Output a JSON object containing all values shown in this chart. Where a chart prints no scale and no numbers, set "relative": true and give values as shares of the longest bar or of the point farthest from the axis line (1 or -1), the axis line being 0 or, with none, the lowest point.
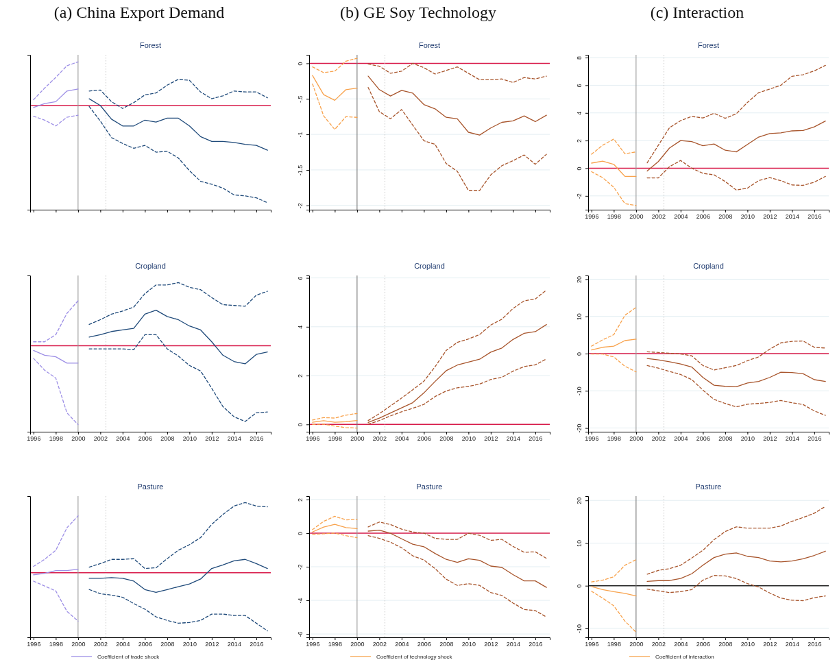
{
  "chart_data": [
    {
      "type": "line",
      "title": "(a) China Export Demand",
      "subtitle": "Forest",
      "relative": true,
      "xlim": [
        1995.7,
        2017.3
      ],
      "xticks": [
        1996,
        1998,
        2000,
        2002,
        2004,
        2006,
        2008,
        2010,
        2012,
        2014,
        2016
      ],
      "tick_labels": false,
      "ref_lines": [
        {
          "axis": "y",
          "value": 0,
          "color": "#d81b4a"
        },
        {
          "axis": "x",
          "value": 2000,
          "color": "#999999"
        },
        {
          "axis": "x",
          "value": 2002.5,
          "color": "#cccccc",
          "line_style": "dotted"
        }
      ],
      "series": [
        {
          "color": "#9d8fe6",
          "x": [
            1996,
            1997,
            1998,
            1999,
            2000
          ],
          "values": [
            -0.02,
            0.02,
            0.04,
            0.15,
            0.17
          ]
        },
        {
          "color": "#9d8fe6",
          "line_style": "dashed",
          "x": [
            1996,
            1997,
            1998,
            1999,
            2000
          ],
          "values": [
            0.06,
            0.18,
            0.29,
            0.41,
            0.45
          ]
        },
        {
          "color": "#9d8fe6",
          "line_style": "dashed",
          "x": [
            1996,
            1997,
            1998,
            1999,
            2000
          ],
          "values": [
            -0.11,
            -0.15,
            -0.21,
            -0.12,
            -0.1
          ]
        },
        {
          "color": "#1f4a7a",
          "x": [
            2001,
            2002,
            2003,
            2004,
            2005,
            2006,
            2007,
            2008,
            2009,
            2010,
            2011,
            2012,
            2013,
            2014,
            2015,
            2016,
            2017
          ],
          "values": [
            0.07,
            0,
            -0.14,
            -0.21,
            -0.21,
            -0.15,
            -0.17,
            -0.13,
            -0.13,
            -0.21,
            -0.32,
            -0.37,
            -0.37,
            -0.38,
            -0.4,
            -0.41,
            -0.46
          ]
        },
        {
          "color": "#1f4a7a",
          "line_style": "dashed",
          "x": [
            2001,
            2002,
            2003,
            2004,
            2005,
            2006,
            2007,
            2008,
            2009,
            2010,
            2011,
            2012,
            2013,
            2014,
            2015,
            2016,
            2017
          ],
          "values": [
            0.15,
            0.16,
            0.04,
            -0.03,
            0.03,
            0.11,
            0.13,
            0.21,
            0.27,
            0.26,
            0.14,
            0.07,
            0.1,
            0.15,
            0.14,
            0.14,
            0.08
          ]
        },
        {
          "color": "#1f4a7a",
          "line_style": "dashed",
          "x": [
            2001,
            2002,
            2003,
            2004,
            2005,
            2006,
            2007,
            2008,
            2009,
            2010,
            2011,
            2012,
            2013,
            2014,
            2015,
            2016,
            2017
          ],
          "values": [
            -0.01,
            -0.16,
            -0.33,
            -0.39,
            -0.44,
            -0.41,
            -0.48,
            -0.47,
            -0.54,
            -0.67,
            -0.78,
            -0.81,
            -0.85,
            -0.92,
            -0.93,
            -0.95,
            -1
          ]
        }
      ]
    },
    {
      "type": "line",
      "title": "(b) GE Soy Technology",
      "subtitle": "Forest",
      "xlim": [
        1995.7,
        2017.3
      ],
      "xticks": [
        1996,
        1998,
        2000,
        2002,
        2004,
        2006,
        2008,
        2010,
        2012,
        2014,
        2016
      ],
      "ylim": [
        -2.06,
        0.12
      ],
      "yticks": [
        {
          "value": 0,
          "label": "0"
        },
        {
          "value": -0.5,
          "label": "-.5"
        },
        {
          "value": -1,
          "label": "-1"
        },
        {
          "value": -1.5,
          "label": "-1.5"
        },
        {
          "value": -2,
          "label": "-2"
        }
      ],
      "tick_labels": "y",
      "grid": "y",
      "ref_lines": [
        {
          "axis": "y",
          "value": 0,
          "color": "#d81b4a"
        },
        {
          "axis": "x",
          "value": 2000,
          "color": "#777777"
        },
        {
          "axis": "x",
          "value": 2002.5,
          "color": "#cccccc",
          "line_style": "dotted"
        }
      ],
      "series": [
        {
          "color": "#f8a24c",
          "x": [
            1996,
            1997,
            1998,
            1999,
            2000
          ],
          "values": [
            -0.17,
            -0.44,
            -0.52,
            -0.37,
            -0.35
          ]
        },
        {
          "color": "#f8a24c",
          "line_style": "dashed",
          "x": [
            1996,
            1997,
            1998,
            1999,
            2000
          ],
          "values": [
            -0.05,
            -0.13,
            -0.11,
            0.03,
            0.07
          ]
        },
        {
          "color": "#f8a24c",
          "line_style": "dashed",
          "x": [
            1996,
            1997,
            1998,
            1999,
            2000
          ],
          "values": [
            -0.29,
            -0.74,
            -0.93,
            -0.75,
            -0.76
          ]
        },
        {
          "color": "#a8552c",
          "x": [
            2001,
            2002,
            2003,
            2004,
            2005,
            2006,
            2007,
            2008,
            2009,
            2010,
            2011,
            2012,
            2013,
            2014,
            2015,
            2016,
            2017
          ],
          "values": [
            -0.18,
            -0.37,
            -0.46,
            -0.38,
            -0.42,
            -0.58,
            -0.64,
            -0.76,
            -0.78,
            -0.97,
            -1.01,
            -0.91,
            -0.83,
            -0.81,
            -0.74,
            -0.82,
            -0.73
          ]
        },
        {
          "color": "#a8552c",
          "line_style": "dashed",
          "x": [
            2001,
            2002,
            2003,
            2004,
            2005,
            2006,
            2007,
            2008,
            2009,
            2010,
            2011,
            2012,
            2013,
            2014,
            2015,
            2016,
            2017
          ],
          "values": [
            -0.01,
            -0.04,
            -0.14,
            -0.11,
            0,
            -0.06,
            -0.15,
            -0.1,
            -0.05,
            -0.14,
            -0.23,
            -0.23,
            -0.22,
            -0.27,
            -0.2,
            -0.22,
            -0.18
          ]
        },
        {
          "color": "#a8552c",
          "line_style": "dashed",
          "x": [
            2001,
            2002,
            2003,
            2004,
            2005,
            2006,
            2007,
            2008,
            2009,
            2010,
            2011,
            2012,
            2013,
            2014,
            2015,
            2016,
            2017
          ],
          "values": [
            -0.34,
            -0.68,
            -0.78,
            -0.65,
            -0.87,
            -1.09,
            -1.14,
            -1.41,
            -1.52,
            -1.79,
            -1.79,
            -1.57,
            -1.44,
            -1.37,
            -1.29,
            -1.42,
            -1.28
          ]
        }
      ]
    },
    {
      "type": "line",
      "title": "(c) Interaction",
      "subtitle": "Forest",
      "xlim": [
        1995.7,
        2017.3
      ],
      "xticks": [
        1996,
        1998,
        2000,
        2002,
        2004,
        2006,
        2008,
        2010,
        2012,
        2014,
        2016
      ],
      "ylim": [
        -3,
        8.2
      ],
      "yticks": [
        -2,
        0,
        2,
        4,
        6,
        8
      ],
      "grid": "y",
      "ref_lines": [
        {
          "axis": "y",
          "value": 0,
          "color": "#d81b4a"
        },
        {
          "axis": "x",
          "value": 2000,
          "color": "#999999"
        },
        {
          "axis": "x",
          "value": 2002.5,
          "color": "#cccccc",
          "line_style": "dotted"
        }
      ],
      "series": [
        {
          "color": "#f8a24c",
          "x": [
            1996,
            1997,
            1998,
            1999,
            2000
          ],
          "values": [
            0.37,
            0.51,
            0.28,
            -0.59,
            -0.59
          ]
        },
        {
          "color": "#f8a24c",
          "line_style": "dashed",
          "x": [
            1996,
            1997,
            1998,
            1999,
            2000
          ],
          "values": [
            1.01,
            1.66,
            2.11,
            1.04,
            1.18
          ]
        },
        {
          "color": "#f8a24c",
          "line_style": "dashed",
          "x": [
            1996,
            1997,
            1998,
            1999,
            2000
          ],
          "values": [
            -0.25,
            -0.68,
            -1.38,
            -2.56,
            -2.7
          ]
        },
        {
          "color": "#a8552c",
          "x": [
            2001,
            2002,
            2003,
            2004,
            2005,
            2006,
            2007,
            2008,
            2009,
            2010,
            2011,
            2012,
            2013,
            2014,
            2015,
            2016,
            2017
          ],
          "values": [
            -0.2,
            0.48,
            1.46,
            2.0,
            1.92,
            1.63,
            1.75,
            1.3,
            1.18,
            1.72,
            2.25,
            2.51,
            2.56,
            2.7,
            2.73,
            2.99,
            3.41
          ]
        },
        {
          "color": "#a8552c",
          "line_style": "dashed",
          "x": [
            2001,
            2002,
            2003,
            2004,
            2005,
            2006,
            2007,
            2008,
            2009,
            2010,
            2011,
            2012,
            2013,
            2014,
            2015,
            2016,
            2017
          ],
          "values": [
            0.39,
            1.66,
            2.93,
            3.44,
            3.75,
            3.63,
            3.97,
            3.61,
            3.94,
            4.76,
            5.46,
            5.72,
            6.0,
            6.65,
            6.76,
            7.04,
            7.44
          ]
        },
        {
          "color": "#a8552c",
          "line_style": "dashed",
          "x": [
            2001,
            2002,
            2003,
            2004,
            2005,
            2006,
            2007,
            2008,
            2009,
            2010,
            2011,
            2012,
            2013,
            2014,
            2015,
            2016,
            2017
          ],
          "values": [
            -0.7,
            -0.7,
            0.11,
            0.56,
            0,
            -0.37,
            -0.48,
            -0.96,
            -1.58,
            -1.44,
            -0.9,
            -0.68,
            -0.9,
            -1.21,
            -1.24,
            -1.01,
            -0.59
          ]
        }
      ]
    },
    {
      "type": "line",
      "title": "Cropland",
      "relative": true,
      "xlim": [
        1995.7,
        2017.3
      ],
      "xticks": [
        1996,
        1998,
        2000,
        2002,
        2004,
        2006,
        2008,
        2010,
        2012,
        2014,
        2016
      ],
      "tick_labels": "x",
      "ref_lines": [
        {
          "axis": "y",
          "value": 0,
          "color": "#d81b4a"
        },
        {
          "axis": "x",
          "value": 2000,
          "color": "#999999"
        },
        {
          "axis": "x",
          "value": 2002.5,
          "color": "#cccccc",
          "line_style": "dotted"
        }
      ],
      "series": [
        {
          "color": "#9d8fe6",
          "x": [
            1996,
            1997,
            1998,
            1999,
            2000
          ],
          "values": [
            -0.06,
            -0.12,
            -0.14,
            -0.22,
            -0.22
          ]
        },
        {
          "color": "#9d8fe6",
          "line_style": "dashed",
          "x": [
            1996,
            1997,
            1998,
            1999,
            2000
          ],
          "values": [
            0.05,
            0.05,
            0.14,
            0.41,
            0.57
          ]
        },
        {
          "color": "#9d8fe6",
          "line_style": "dashed",
          "x": [
            1996,
            1997,
            1998,
            1999,
            2000
          ],
          "values": [
            -0.16,
            -0.31,
            -0.41,
            -0.85,
            -1
          ]
        },
        {
          "color": "#1f4a7a",
          "x": [
            2001,
            2002,
            2003,
            2004,
            2005,
            2006,
            2007,
            2008,
            2009,
            2010,
            2011,
            2012,
            2013,
            2014,
            2015,
            2016,
            2017
          ],
          "values": [
            0.11,
            0.14,
            0.18,
            0.2,
            0.22,
            0.4,
            0.45,
            0.37,
            0.33,
            0.25,
            0.2,
            0.05,
            -0.12,
            -0.2,
            -0.23,
            -0.11,
            -0.08
          ]
        },
        {
          "color": "#1f4a7a",
          "line_style": "dashed",
          "x": [
            2001,
            2002,
            2003,
            2004,
            2005,
            2006,
            2007,
            2008,
            2009,
            2010,
            2011,
            2012,
            2013,
            2014,
            2015,
            2016,
            2017
          ],
          "values": [
            0.27,
            0.33,
            0.4,
            0.44,
            0.49,
            0.66,
            0.77,
            0.77,
            0.8,
            0.74,
            0.71,
            0.61,
            0.52,
            0.51,
            0.5,
            0.64,
            0.69
          ]
        },
        {
          "color": "#1f4a7a",
          "line_style": "dashed",
          "x": [
            2001,
            2002,
            2003,
            2004,
            2005,
            2006,
            2007,
            2008,
            2009,
            2010,
            2011,
            2012,
            2013,
            2014,
            2015,
            2016,
            2017
          ],
          "values": [
            -0.04,
            -0.04,
            -0.04,
            -0.04,
            -0.05,
            0.14,
            0.14,
            -0.04,
            -0.13,
            -0.25,
            -0.32,
            -0.54,
            -0.77,
            -0.9,
            -0.96,
            -0.85,
            -0.84
          ]
        }
      ]
    },
    {
      "type": "line",
      "title": "Cropland",
      "xlim": [
        1995.7,
        2017.3
      ],
      "xticks": [
        1996,
        1998,
        2000,
        2002,
        2004,
        2006,
        2008,
        2010,
        2012,
        2014,
        2016
      ],
      "ylim": [
        -0.3,
        6.1
      ],
      "yticks": [
        0,
        2,
        4,
        6
      ],
      "grid": "y",
      "ref_lines": [
        {
          "axis": "y",
          "value": 0,
          "color": "#d81b4a"
        },
        {
          "axis": "x",
          "value": 2000,
          "color": "#777777"
        },
        {
          "axis": "x",
          "value": 2002.5,
          "color": "#cccccc",
          "line_style": "dotted"
        }
      ],
      "series": [
        {
          "color": "#f8a24c",
          "x": [
            1996,
            1997,
            1998,
            1999,
            2000
          ],
          "values": [
            0.09,
            0.15,
            0.09,
            0.11,
            0.16
          ]
        },
        {
          "color": "#f8a24c",
          "line_style": "dashed",
          "x": [
            1996,
            1997,
            1998,
            1999,
            2000
          ],
          "values": [
            0.18,
            0.28,
            0.26,
            0.38,
            0.45
          ]
        },
        {
          "color": "#f8a24c",
          "line_style": "dashed",
          "x": [
            1996,
            1997,
            1998,
            1999,
            2000
          ],
          "values": [
            0,
            0.01,
            -0.07,
            -0.13,
            -0.15
          ]
        },
        {
          "color": "#a8552c",
          "x": [
            2001,
            2002,
            2003,
            2004,
            2005,
            2006,
            2007,
            2008,
            2009,
            2010,
            2011,
            2012,
            2013,
            2014,
            2015,
            2016,
            2017
          ],
          "values": [
            0.08,
            0.26,
            0.47,
            0.68,
            0.89,
            1.29,
            1.76,
            2.2,
            2.43,
            2.55,
            2.67,
            2.96,
            3.13,
            3.48,
            3.73,
            3.8,
            4.09
          ]
        },
        {
          "color": "#a8552c",
          "line_style": "dashed",
          "x": [
            2001,
            2002,
            2003,
            2004,
            2005,
            2006,
            2007,
            2008,
            2009,
            2010,
            2011,
            2012,
            2013,
            2014,
            2015,
            2016,
            2017
          ],
          "values": [
            0.16,
            0.44,
            0.76,
            1.08,
            1.42,
            1.77,
            2.36,
            3.03,
            3.36,
            3.5,
            3.68,
            4.07,
            4.31,
            4.75,
            5.06,
            5.14,
            5.5
          ]
        },
        {
          "color": "#a8552c",
          "line_style": "dashed",
          "x": [
            2001,
            2002,
            2003,
            2004,
            2005,
            2006,
            2007,
            2008,
            2009,
            2010,
            2011,
            2012,
            2013,
            2014,
            2015,
            2016,
            2017
          ],
          "values": [
            0.01,
            0.16,
            0.35,
            0.52,
            0.66,
            0.82,
            1.14,
            1.37,
            1.5,
            1.56,
            1.65,
            1.84,
            1.93,
            2.18,
            2.37,
            2.44,
            2.68
          ]
        }
      ]
    },
    {
      "type": "line",
      "title": "Cropland",
      "xlim": [
        1995.7,
        2017.3
      ],
      "xticks": [
        1996,
        1998,
        2000,
        2002,
        2004,
        2006,
        2008,
        2010,
        2012,
        2014,
        2016
      ],
      "ylim": [
        -21,
        21
      ],
      "yticks": [
        -20,
        -10,
        0,
        10,
        20
      ],
      "grid": "y",
      "ref_lines": [
        {
          "axis": "y",
          "value": 0,
          "color": "#d81b4a"
        },
        {
          "axis": "x",
          "value": 2000,
          "color": "#999999"
        },
        {
          "axis": "x",
          "value": 2002.5,
          "color": "#cccccc",
          "line_style": "dotted"
        }
      ],
      "series": [
        {
          "color": "#f8a24c",
          "x": [
            1996,
            1997,
            1998,
            1999,
            2000
          ],
          "values": [
            1.0,
            1.7,
            2.0,
            3.5,
            3.9
          ]
        },
        {
          "color": "#f8a24c",
          "line_style": "dashed",
          "x": [
            1996,
            1997,
            1998,
            1999,
            2000
          ],
          "values": [
            2.0,
            3.7,
            5.1,
            10.3,
            12.4
          ]
        },
        {
          "color": "#f8a24c",
          "line_style": "dashed",
          "x": [
            1996,
            1997,
            1998,
            1999,
            2000
          ],
          "values": [
            -0.1,
            -0.1,
            -0.9,
            -3.4,
            -4.9
          ]
        },
        {
          "color": "#a8552c",
          "x": [
            2001,
            2002,
            2003,
            2004,
            2005,
            2006,
            2007,
            2008,
            2009,
            2010,
            2011,
            2012,
            2013,
            2014,
            2015,
            2016,
            2017
          ],
          "values": [
            -1.3,
            -1.7,
            -2.2,
            -2.8,
            -3.6,
            -6.4,
            -8.5,
            -8.8,
            -8.9,
            -7.9,
            -7.5,
            -6.4,
            -5.0,
            -5.1,
            -5.4,
            -7.0,
            -7.5
          ]
        },
        {
          "color": "#a8552c",
          "line_style": "dashed",
          "x": [
            2001,
            2002,
            2003,
            2004,
            2005,
            2006,
            2007,
            2008,
            2009,
            2010,
            2011,
            2012,
            2013,
            2014,
            2015,
            2016,
            2017
          ],
          "values": [
            0.5,
            0.3,
            0.1,
            -0.1,
            -0.6,
            -3.2,
            -4.4,
            -3.8,
            -3.2,
            -1.9,
            -0.9,
            1.2,
            2.9,
            3.3,
            3.4,
            1.7,
            1.5
          ]
        },
        {
          "color": "#a8552c",
          "line_style": "dashed",
          "x": [
            2001,
            2002,
            2003,
            2004,
            2005,
            2006,
            2007,
            2008,
            2009,
            2010,
            2011,
            2012,
            2013,
            2014,
            2015,
            2016,
            2017
          ],
          "values": [
            -3.2,
            -3.9,
            -4.8,
            -5.6,
            -7.0,
            -9.8,
            -12.3,
            -13.4,
            -14.3,
            -13.6,
            -13.4,
            -13.1,
            -12.6,
            -13.2,
            -13.7,
            -15.4,
            -16.6
          ]
        }
      ]
    },
    {
      "type": "line",
      "title": "Pasture",
      "relative": true,
      "xlim": [
        1995.7,
        2017.3
      ],
      "xticks": [
        1996,
        1998,
        2000,
        2002,
        2004,
        2006,
        2008,
        2010,
        2012,
        2014,
        2016
      ],
      "tick_labels": "x",
      "legend": "bottom",
      "ref_lines": [
        {
          "axis": "y",
          "value": 0,
          "color": "#d81b4a"
        },
        {
          "axis": "x",
          "value": 2000,
          "color": "#999999"
        },
        {
          "axis": "x",
          "value": 2002.5,
          "color": "#cccccc",
          "line_style": "dotted"
        }
      ],
      "series": [
        {
          "name": "Coefficient of trade shock",
          "color": "#9d8fe6",
          "x": [
            1996,
            1997,
            1998,
            1999,
            2000
          ],
          "values": [
            -0.03,
            -0.01,
            0.03,
            0.03,
            0.05
          ]
        },
        {
          "color": "#9d8fe6",
          "line_style": "dashed",
          "x": [
            1996,
            1997,
            1998,
            1999,
            2000
          ],
          "values": [
            0.09,
            0.19,
            0.32,
            0.64,
            0.81
          ]
        },
        {
          "color": "#9d8fe6",
          "line_style": "dashed",
          "x": [
            1996,
            1997,
            1998,
            1999,
            2000
          ],
          "values": [
            -0.12,
            -0.19,
            -0.26,
            -0.55,
            -0.69
          ]
        },
        {
          "color": "#1f4a7a",
          "x": [
            2001,
            2002,
            2003,
            2004,
            2005,
            2006,
            2007,
            2008,
            2009,
            2010,
            2011,
            2012,
            2013,
            2014,
            2015,
            2016,
            2017
          ],
          "values": [
            -0.08,
            -0.08,
            -0.07,
            -0.08,
            -0.12,
            -0.24,
            -0.28,
            -0.24,
            -0.2,
            -0.16,
            -0.09,
            0.06,
            0.11,
            0.17,
            0.19,
            0.13,
            0.06
          ]
        },
        {
          "color": "#1f4a7a",
          "line_style": "dashed",
          "x": [
            2001,
            2002,
            2003,
            2004,
            2005,
            2006,
            2007,
            2008,
            2009,
            2010,
            2011,
            2012,
            2013,
            2014,
            2015,
            2016,
            2017
          ],
          "values": [
            0.08,
            0.13,
            0.19,
            0.19,
            0.2,
            0.06,
            0.07,
            0.2,
            0.32,
            0.4,
            0.5,
            0.69,
            0.83,
            0.95,
            1,
            0.95,
            0.94
          ]
        },
        {
          "color": "#1f4a7a",
          "line_style": "dashed",
          "x": [
            2001,
            2002,
            2003,
            2004,
            2005,
            2006,
            2007,
            2008,
            2009,
            2010,
            2011,
            2012,
            2013,
            2014,
            2015,
            2016,
            2017
          ],
          "values": [
            -0.24,
            -0.3,
            -0.32,
            -0.35,
            -0.44,
            -0.52,
            -0.63,
            -0.68,
            -0.72,
            -0.71,
            -0.68,
            -0.59,
            -0.59,
            -0.61,
            -0.61,
            -0.72,
            -0.83
          ]
        }
      ]
    },
    {
      "type": "line",
      "title": "Pasture",
      "xlim": [
        1995.7,
        2017.3
      ],
      "xticks": [
        1996,
        1998,
        2000,
        2002,
        2004,
        2006,
        2008,
        2010,
        2012,
        2014,
        2016
      ],
      "ylim": [
        -6.2,
        2.2
      ],
      "yticks": [
        -6,
        -4,
        -2,
        0,
        2
      ],
      "grid": "y",
      "legend": "bottom",
      "ref_lines": [
        {
          "axis": "y",
          "value": 0,
          "color": "#d81b4a"
        },
        {
          "axis": "x",
          "value": 2000,
          "color": "#999999"
        },
        {
          "axis": "x",
          "value": 2002.5,
          "color": "#cccccc",
          "line_style": "dotted"
        }
      ],
      "series": [
        {
          "name": "Coefficient of technology shock",
          "color": "#f8a24c",
          "x": [
            1996,
            1997,
            1998,
            1999,
            2000
          ],
          "values": [
            0.07,
            0.36,
            0.52,
            0.33,
            0.27
          ]
        },
        {
          "color": "#f8a24c",
          "line_style": "dashed",
          "x": [
            1996,
            1997,
            1998,
            1999,
            2000
          ],
          "values": [
            0.21,
            0.7,
            1.0,
            0.79,
            0.81
          ]
        },
        {
          "color": "#f8a24c",
          "line_style": "dashed",
          "x": [
            1996,
            1997,
            1998,
            1999,
            2000
          ],
          "values": [
            -0.07,
            -0.04,
            0,
            -0.15,
            -0.27
          ]
        },
        {
          "color": "#a8552c",
          "x": [
            2001,
            2002,
            2003,
            2004,
            2005,
            2006,
            2007,
            2008,
            2009,
            2010,
            2011,
            2012,
            2013,
            2014,
            2015,
            2016,
            2017
          ],
          "values": [
            0.12,
            0.18,
            -0.01,
            -0.34,
            -0.66,
            -0.81,
            -1.21,
            -1.56,
            -1.74,
            -1.53,
            -1.62,
            -1.96,
            -2.04,
            -2.47,
            -2.84,
            -2.84,
            -3.23
          ]
        },
        {
          "color": "#a8552c",
          "line_style": "dashed",
          "x": [
            2001,
            2002,
            2003,
            2004,
            2005,
            2006,
            2007,
            2008,
            2009,
            2010,
            2011,
            2012,
            2013,
            2014,
            2015,
            2016,
            2017
          ],
          "values": [
            0.37,
            0.66,
            0.51,
            0.24,
            0.07,
            0,
            -0.31,
            -0.37,
            -0.37,
            -0.01,
            -0.13,
            -0.43,
            -0.37,
            -0.79,
            -1.14,
            -1.11,
            -1.5
          ]
        },
        {
          "color": "#a8552c",
          "line_style": "dashed",
          "x": [
            2001,
            2002,
            2003,
            2004,
            2005,
            2006,
            2007,
            2008,
            2009,
            2010,
            2011,
            2012,
            2013,
            2014,
            2015,
            2016,
            2017
          ],
          "values": [
            -0.15,
            -0.31,
            -0.54,
            -0.87,
            -1.35,
            -1.6,
            -2.11,
            -2.74,
            -3.11,
            -3.01,
            -3.11,
            -3.53,
            -3.71,
            -4.16,
            -4.54,
            -4.61,
            -4.99
          ]
        }
      ]
    },
    {
      "type": "line",
      "title": "Pasture",
      "xlim": [
        1995.7,
        2017.3
      ],
      "xticks": [
        1996,
        1998,
        2000,
        2002,
        2004,
        2006,
        2008,
        2010,
        2012,
        2014,
        2016
      ],
      "ylim": [
        -12.1,
        21
      ],
      "yticks": [
        -10,
        0,
        10,
        20
      ],
      "grid": "y",
      "legend": "bottom",
      "ref_lines": [
        {
          "axis": "y",
          "value": 0,
          "color": "#222222"
        },
        {
          "axis": "x",
          "value": 2000,
          "color": "#777777"
        },
        {
          "axis": "x",
          "value": 2002.5,
          "color": "#cccccc",
          "line_style": "dotted"
        }
      ],
      "series": [
        {
          "name": "Coefficient of interaction",
          "color": "#f8a24c",
          "x": [
            1996,
            1997,
            1998,
            1999,
            2000
          ],
          "values": [
            -0.2,
            -0.9,
            -1.4,
            -1.8,
            -2.4
          ]
        },
        {
          "color": "#f8a24c",
          "line_style": "dashed",
          "x": [
            1996,
            1997,
            1998,
            1999,
            2000
          ],
          "values": [
            0.9,
            1.3,
            2.1,
            4.8,
            6.1
          ]
        },
        {
          "color": "#f8a24c",
          "line_style": "dashed",
          "x": [
            1996,
            1997,
            1998,
            1999,
            2000
          ],
          "values": [
            -1.3,
            -2.9,
            -4.7,
            -8.3,
            -10.9
          ]
        },
        {
          "color": "#a8552c",
          "x": [
            2001,
            2002,
            2003,
            2004,
            2005,
            2006,
            2007,
            2008,
            2009,
            2010,
            2011,
            2012,
            2013,
            2014,
            2015,
            2016,
            2017
          ],
          "values": [
            1.0,
            1.2,
            1.2,
            1.7,
            2.8,
            4.8,
            6.6,
            7.4,
            7.7,
            6.9,
            6.6,
            5.8,
            5.6,
            5.8,
            6.3,
            7.1,
            8.1
          ]
        },
        {
          "color": "#a8552c",
          "line_style": "dashed",
          "x": [
            2001,
            2002,
            2003,
            2004,
            2005,
            2006,
            2007,
            2008,
            2009,
            2010,
            2011,
            2012,
            2013,
            2014,
            2015,
            2016,
            2017
          ],
          "values": [
            2.7,
            3.6,
            4.0,
            4.8,
            6.5,
            8.3,
            10.8,
            12.7,
            13.8,
            13.5,
            13.5,
            13.5,
            14.0,
            15.1,
            16.0,
            17.0,
            18.6
          ]
        },
        {
          "color": "#a8552c",
          "line_style": "dashed",
          "x": [
            2001,
            2002,
            2003,
            2004,
            2005,
            2006,
            2007,
            2008,
            2009,
            2010,
            2011,
            2012,
            2013,
            2014,
            2015,
            2016,
            2017
          ],
          "values": [
            -0.8,
            -1.2,
            -1.6,
            -1.4,
            -0.9,
            1.3,
            2.4,
            2.3,
            1.7,
            0.5,
            -0.3,
            -1.7,
            -2.9,
            -3.4,
            -3.5,
            -2.8,
            -2.4
          ]
        }
      ]
    }
  ]
}
